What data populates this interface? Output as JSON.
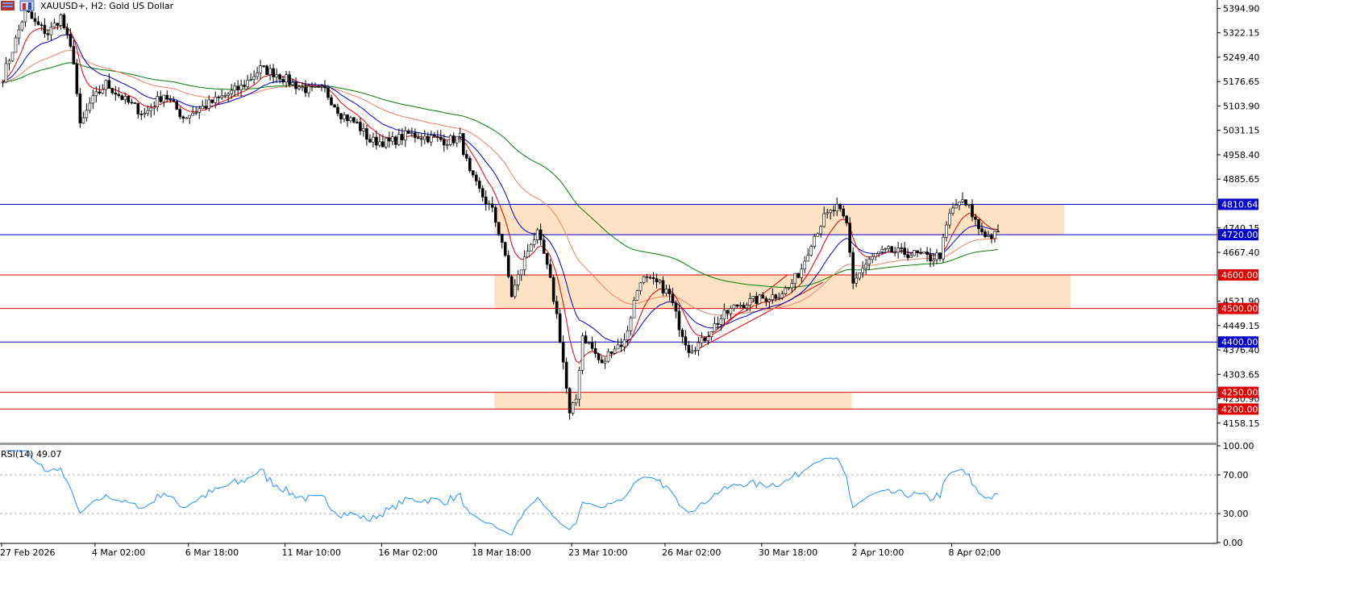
{
  "header": {
    "symbol_title": "XAUUSD+, H2:  Gold US Dollar",
    "icons": [
      "chart-grid-icon",
      "trading-icon"
    ]
  },
  "chart_data": {
    "type": "candlestick",
    "symbol": "XAUUSD+",
    "timeframe": "H2",
    "description": "Gold US Dollar",
    "ylim": [
      4100,
      5420
    ],
    "price_ticks": [
      "5394.90",
      "5322.15",
      "5249.40",
      "5176.65",
      "5103.90",
      "5031.15",
      "4958.40",
      "4885.65",
      "4740.15",
      "4667.40",
      "4521.90",
      "4449.15",
      "4376.40",
      "4303.65",
      "4230.90",
      "4158.15"
    ],
    "price_tick_values": [
      5394.9,
      5322.15,
      5249.4,
      5176.65,
      5103.9,
      5031.15,
      4958.4,
      4885.65,
      4740.15,
      4667.4,
      4521.9,
      4449.15,
      4376.4,
      4303.65,
      4230.9,
      4158.15
    ],
    "x_labels": [
      "27 Feb 2026",
      "4 Mar 02:00",
      "6 Mar 18:00",
      "11 Mar 10:00",
      "16 Mar 02:00",
      "18 Mar 18:00",
      "23 Mar 10:00",
      "26 Mar 02:00",
      "30 Mar 18:00",
      "2 Apr 10:00",
      "8 Apr 02:00"
    ],
    "x_label_bars": [
      0,
      29,
      58,
      88,
      118,
      147,
      177,
      206,
      236,
      265,
      295
    ],
    "n_bars": 310,
    "horizontal_levels": [
      {
        "label": "4810.64",
        "value": 4810.64,
        "color": "#0000cc"
      },
      {
        "label": "4720.00",
        "value": 4720.0,
        "color": "#0000cc"
      },
      {
        "label": "4600.00",
        "value": 4600.0,
        "color": "#e00000"
      },
      {
        "label": "4500.00",
        "value": 4500.0,
        "color": "#e00000"
      },
      {
        "label": "4400.00",
        "value": 4400.0,
        "color": "#0000cc"
      },
      {
        "label": "4250.00",
        "value": 4250.0,
        "color": "#e00000"
      },
      {
        "label": "4200.00",
        "value": 4200.0,
        "color": "#e00000"
      }
    ],
    "zones": [
      {
        "from_bar": 153,
        "to_bar": 330,
        "low": 4720,
        "high": 4810.64,
        "color": "#fde2c4"
      },
      {
        "from_bar": 153,
        "to_bar": 332,
        "low": 4500,
        "high": 4600,
        "color": "#fde2c4"
      },
      {
        "from_bar": 153,
        "to_bar": 264,
        "low": 4200,
        "high": 4250,
        "color": "#fde2c4"
      }
    ],
    "channel_lines": [
      {
        "bar1": 216,
        "price1": 4378,
        "bar2": 255,
        "price2": 4578,
        "color": "#e00000"
      },
      {
        "bar1": 216,
        "price1": 4392,
        "bar2": 244,
        "price2": 4600,
        "color": "#e00000"
      }
    ],
    "ma_colors": {
      "fast": "#e00000",
      "mid": "#0000cc",
      "slow": "#f08060",
      "long": "#008000"
    },
    "price_anchors": [
      [
        0,
        5190
      ],
      [
        4,
        5300
      ],
      [
        7,
        5390
      ],
      [
        10,
        5350
      ],
      [
        14,
        5320
      ],
      [
        18,
        5370
      ],
      [
        22,
        5240
      ],
      [
        24,
        5040
      ],
      [
        27,
        5110
      ],
      [
        32,
        5170
      ],
      [
        38,
        5120
      ],
      [
        44,
        5080
      ],
      [
        50,
        5140
      ],
      [
        56,
        5070
      ],
      [
        62,
        5100
      ],
      [
        68,
        5130
      ],
      [
        74,
        5160
      ],
      [
        80,
        5215
      ],
      [
        85,
        5200
      ],
      [
        90,
        5170
      ],
      [
        95,
        5150
      ],
      [
        100,
        5150
      ],
      [
        105,
        5080
      ],
      [
        110,
        5050
      ],
      [
        114,
        5000
      ],
      [
        120,
        4995
      ],
      [
        126,
        5020
      ],
      [
        132,
        5010
      ],
      [
        138,
        5000
      ],
      [
        142,
        5010
      ],
      [
        145,
        4900
      ],
      [
        148,
        4850
      ],
      [
        152,
        4790
      ],
      [
        155,
        4700
      ],
      [
        158,
        4540
      ],
      [
        161,
        4620
      ],
      [
        164,
        4700
      ],
      [
        166,
        4720
      ],
      [
        168,
        4660
      ],
      [
        170,
        4580
      ],
      [
        172,
        4480
      ],
      [
        174,
        4340
      ],
      [
        176,
        4180
      ],
      [
        178,
        4230
      ],
      [
        180,
        4420
      ],
      [
        183,
        4380
      ],
      [
        186,
        4330
      ],
      [
        189,
        4380
      ],
      [
        193,
        4400
      ],
      [
        196,
        4520
      ],
      [
        198,
        4590
      ],
      [
        201,
        4580
      ],
      [
        204,
        4570
      ],
      [
        207,
        4540
      ],
      [
        210,
        4450
      ],
      [
        213,
        4380
      ],
      [
        217,
        4400
      ],
      [
        220,
        4440
      ],
      [
        224,
        4480
      ],
      [
        228,
        4510
      ],
      [
        232,
        4520
      ],
      [
        236,
        4530
      ],
      [
        240,
        4540
      ],
      [
        244,
        4560
      ],
      [
        248,
        4620
      ],
      [
        251,
        4700
      ],
      [
        255,
        4770
      ],
      [
        259,
        4800
      ],
      [
        262,
        4750
      ],
      [
        264,
        4580
      ],
      [
        267,
        4620
      ],
      [
        271,
        4660
      ],
      [
        275,
        4670
      ],
      [
        280,
        4665
      ],
      [
        284,
        4660
      ],
      [
        288,
        4650
      ],
      [
        291,
        4660
      ],
      [
        294,
        4780
      ],
      [
        297,
        4820
      ],
      [
        300,
        4800
      ],
      [
        303,
        4740
      ],
      [
        306,
        4715
      ],
      [
        309,
        4720
      ]
    ],
    "rsi": {
      "label": "RSI(14) 49.07",
      "period": 14,
      "value": 49.07,
      "ylim": [
        0,
        100
      ],
      "ticks": [
        "100.00",
        "70.00",
        "30.00",
        "0.00"
      ],
      "tick_values": [
        100,
        70,
        30,
        0
      ],
      "levels": [
        70,
        30
      ],
      "color": "#1e90ff"
    }
  }
}
